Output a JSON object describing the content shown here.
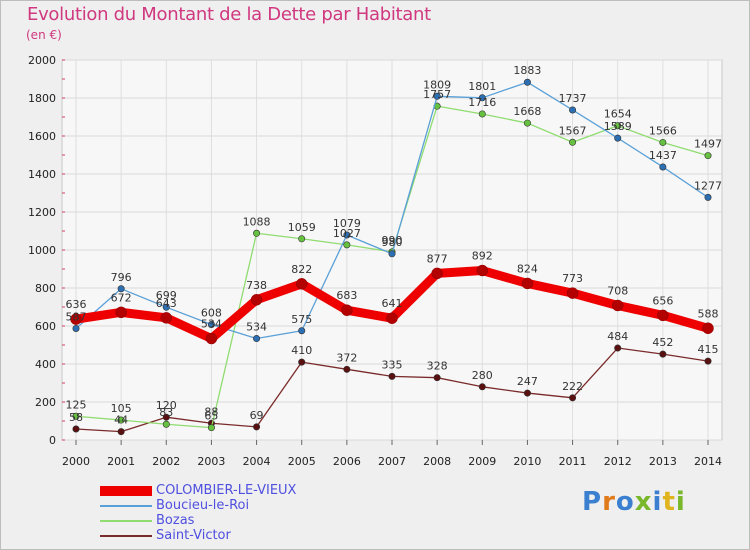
{
  "title": "Evolution du Montant de la Dette par Habitant",
  "unit": "(en €)",
  "brand": {
    "text": "Proxiti",
    "colors": [
      "#3b7fd1",
      "#e07b1c",
      "#3b7fd1",
      "#78b82a",
      "#3b7fd1",
      "#e0b41c",
      "#78b82a"
    ]
  },
  "chart_data": {
    "type": "line",
    "title": "Evolution du Montant de la Dette par Habitant",
    "ylabel": "(en €)",
    "xlabel": "",
    "x": [
      "2000",
      "2001",
      "2002",
      "2003",
      "2004",
      "2005",
      "2006",
      "2007",
      "2008",
      "2009",
      "2010",
      "2011",
      "2012",
      "2013",
      "2014"
    ],
    "ylim": [
      0,
      2000
    ],
    "yticks": [
      0,
      200,
      400,
      600,
      800,
      1000,
      1200,
      1400,
      1600,
      1800,
      2000
    ],
    "grid": true,
    "legend_position": "bottom-left",
    "series": [
      {
        "name": "COLOMBIER-LE-VIEUX",
        "color": "#ef0000",
        "marker": "#b30000",
        "values": [
          636,
          672,
          643,
          534,
          738,
          822,
          683,
          641,
          877,
          892,
          824,
          773,
          708,
          656,
          588
        ]
      },
      {
        "name": "Boucieu-le-Roi",
        "color": "#5aa0d8",
        "marker": "#2d6fb3",
        "values": [
          587,
          796,
          699,
          608,
          534,
          575,
          1079,
          980,
          1809,
          1801,
          1883,
          1737,
          1589,
          1437,
          1277
        ]
      },
      {
        "name": "Bozas",
        "color": "#90dc70",
        "marker": "#66c140",
        "values": [
          125,
          105,
          83,
          65,
          1088,
          1059,
          1027,
          990,
          1757,
          1716,
          1668,
          1567,
          1654,
          1566,
          1497
        ]
      },
      {
        "name": "Saint-Victor",
        "color": "#7a2a2a",
        "marker": "#5a1010",
        "values": [
          58,
          44,
          120,
          88,
          69,
          410,
          372,
          335,
          328,
          280,
          247,
          222,
          484,
          452,
          415
        ]
      }
    ]
  }
}
